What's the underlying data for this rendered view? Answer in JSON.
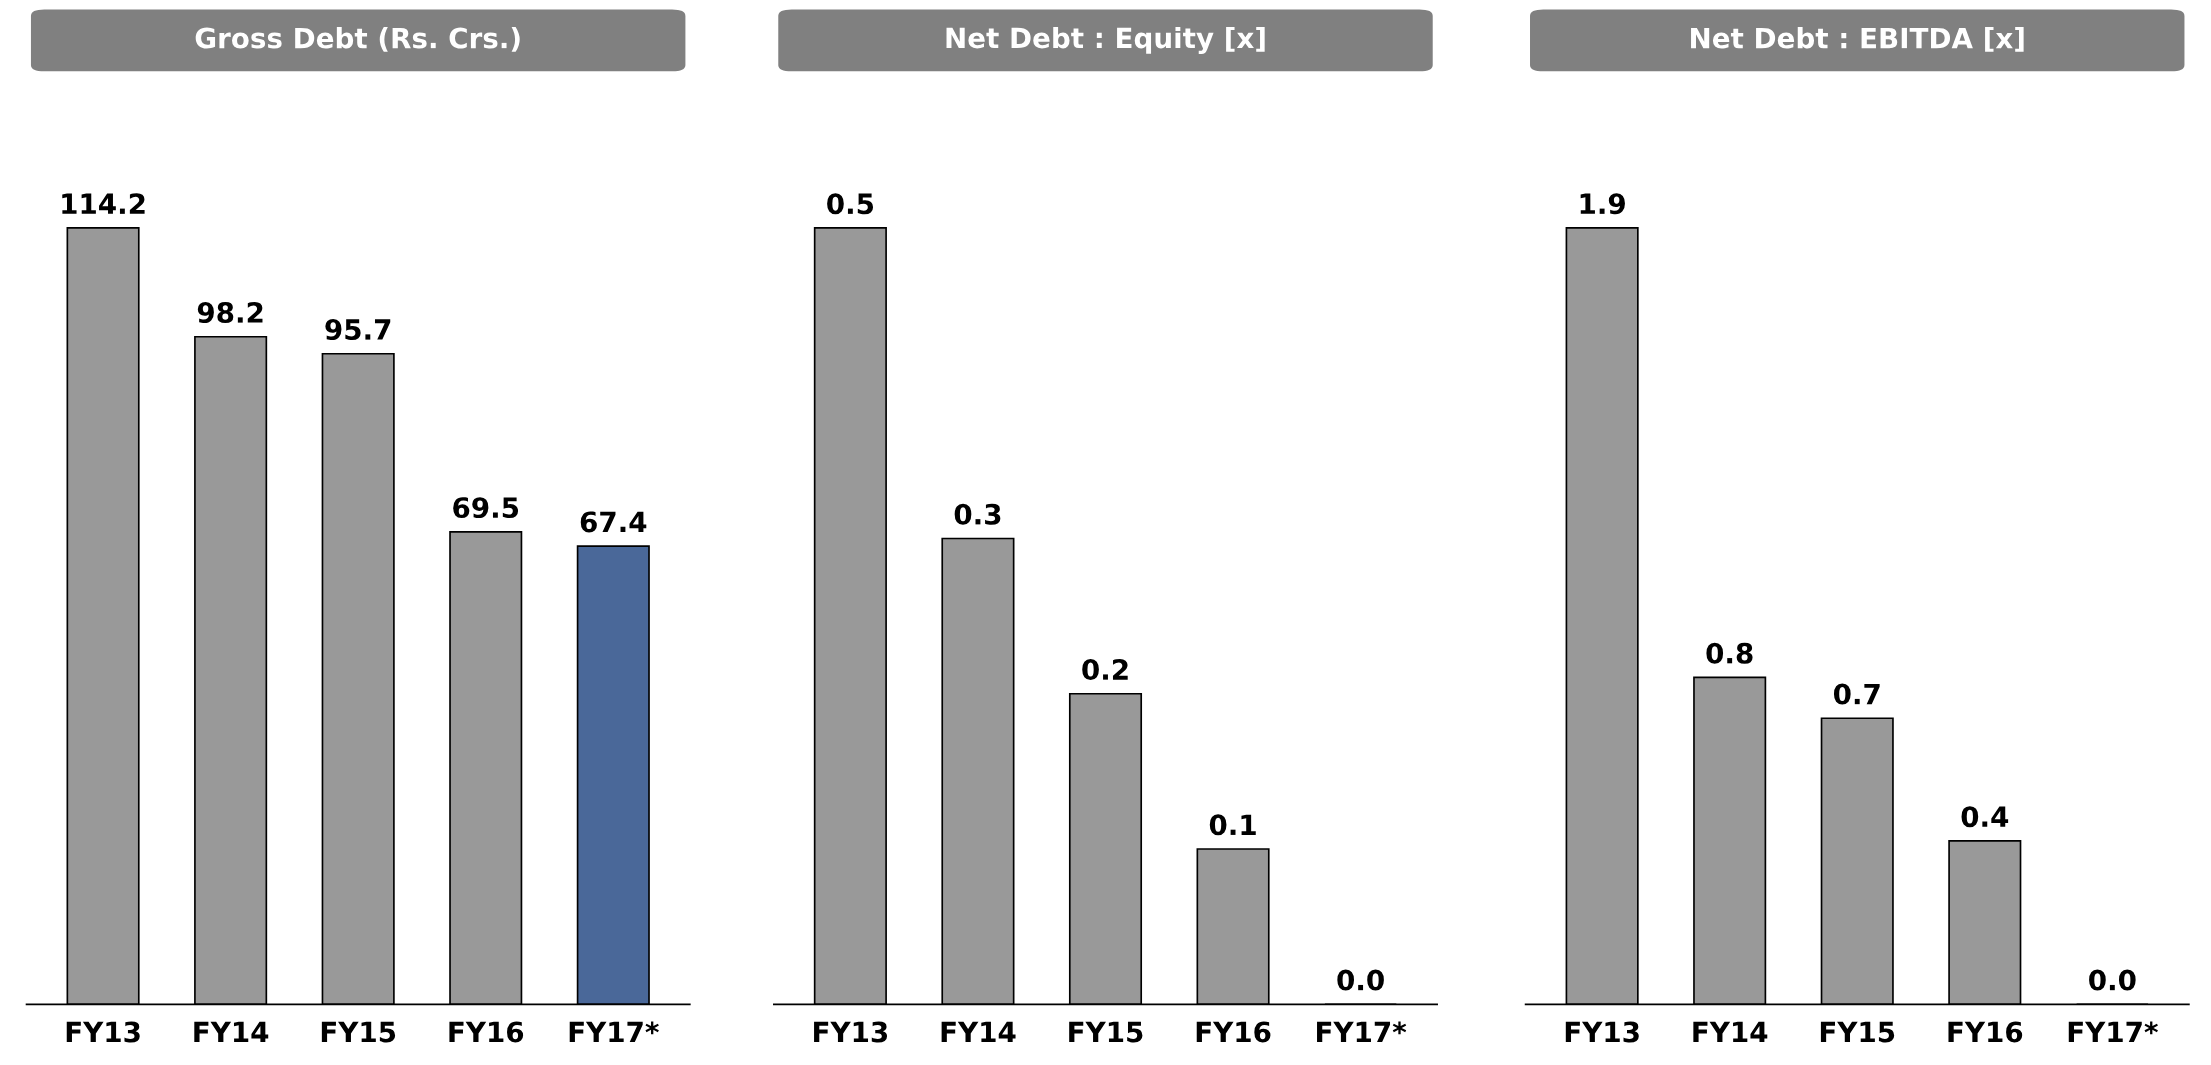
{
  "chart_data": [
    {
      "type": "bar",
      "title": "Gross Debt (Rs. Crs.)",
      "categories": [
        "FY13",
        "FY14",
        "FY15",
        "FY16",
        "FY17*"
      ],
      "values": [
        114.2,
        98.2,
        95.7,
        69.5,
        67.4
      ],
      "colors": [
        "#999999",
        "#999999",
        "#999999",
        "#999999",
        "#4a6899"
      ],
      "value_labels": [
        "114.2",
        "98.2",
        "95.7",
        "69.5",
        "67.4"
      ]
    },
    {
      "type": "bar",
      "title": "Net Debt : Equity [x]",
      "categories": [
        "FY13",
        "FY14",
        "FY15",
        "FY16",
        "FY17*"
      ],
      "values": [
        0.5,
        0.3,
        0.2,
        0.1,
        0.0
      ],
      "colors": [
        "#999999",
        "#999999",
        "#999999",
        "#999999",
        "#999999"
      ],
      "value_labels": [
        "0.5",
        "0.3",
        "0.2",
        "0.1",
        "0.0"
      ]
    },
    {
      "type": "bar",
      "title": "Net Debt : EBITDA [x]",
      "categories": [
        "FY13",
        "FY14",
        "FY15",
        "FY16",
        "FY17*"
      ],
      "values": [
        1.9,
        0.8,
        0.7,
        0.4,
        0.0
      ],
      "colors": [
        "#999999",
        "#999999",
        "#999999",
        "#999999",
        "#999999"
      ],
      "value_labels": [
        "1.9",
        "0.8",
        "0.7",
        "0.4",
        "0.0"
      ]
    }
  ]
}
